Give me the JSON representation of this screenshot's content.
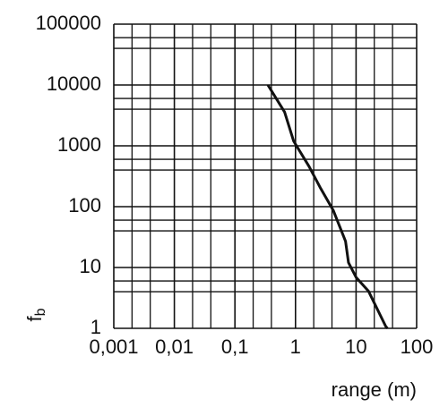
{
  "chart_data": {
    "type": "line",
    "xlabel": "range (m)",
    "ylabel": "f",
    "ylabel_sub": "b",
    "xscale": "log",
    "yscale": "log",
    "grid": true,
    "xlim": [
      0.001,
      100
    ],
    "ylim": [
      1,
      100000
    ],
    "xticks": [
      {
        "value": 0.001,
        "label": "0,001"
      },
      {
        "value": 0.01,
        "label": "0,01"
      },
      {
        "value": 0.1,
        "label": "0,1"
      },
      1,
      10,
      100
    ],
    "yticks": [
      1,
      10,
      100,
      1000,
      10000,
      100000
    ],
    "xminor": [
      0.002,
      0.004,
      0.02,
      0.04,
      0.2,
      0.4,
      2,
      4,
      20,
      40
    ],
    "yminor": [
      4,
      6,
      40,
      60,
      400,
      600,
      4000,
      6000,
      40000,
      60000
    ],
    "series": [
      {
        "color": "#111111",
        "x": [
          0.35,
          0.66,
          0.93,
          1.67,
          2.6,
          4.2,
          6.7,
          7.5,
          10,
          16,
          31,
          33
        ],
        "values": [
          10000,
          3600,
          1200,
          460,
          200,
          87,
          27,
          12,
          6.9,
          4.1,
          1.07,
          1
        ]
      }
    ]
  }
}
